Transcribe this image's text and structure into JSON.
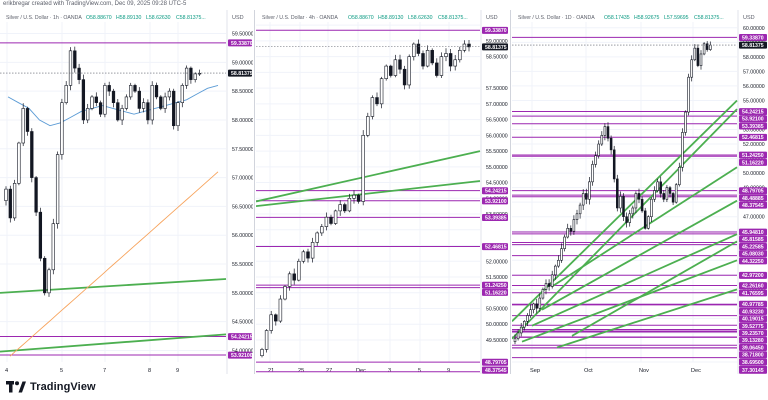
{
  "credit": "erikbregar created with TradingView.com, Dec 09, 2025 09:28 UTC-5",
  "brand": "TradingView",
  "colors": {
    "purple": "#9c27b0",
    "green": "#4caf50",
    "up": "#ffffff",
    "down": "#131722",
    "grid": "#f0f3fa",
    "ma_blue": "#5b9bd5",
    "ma_orange": "#f7a35c"
  },
  "panels": [
    {
      "id": "p1",
      "title": "Silver / U.S. Dollar · 1h · OANDA",
      "ohlc": {
        "o": "O58.88670",
        "h": "H58.89130",
        "l": "L58.62630",
        "c": "C58.81375..."
      },
      "axis_unit": "USD",
      "y_ticks": [
        "59.50000",
        "59.00000",
        "58.50000",
        "58.00000",
        "57.50000",
        "57.00000",
        "56.50000",
        "56.00000",
        "55.50000",
        "55.00000",
        "54.50000",
        "54.00000"
      ],
      "x_ticks": [
        "4",
        "5",
        "7",
        "8",
        "9"
      ],
      "price_labels": [
        {
          "text": "59.33870",
          "type": "purple"
        },
        {
          "text": "58.81375",
          "type": "current"
        },
        {
          "text": "54.24215",
          "type": "purple"
        },
        {
          "text": "53.92100",
          "type": "purple"
        }
      ]
    },
    {
      "id": "p2",
      "title": "Silver / U.S. Dollar · 4h · OANDA",
      "ohlc": {
        "o": "O58.88670",
        "h": "H58.89130",
        "l": "L58.62630",
        "c": "C58.81375..."
      },
      "axis_unit": "USD",
      "y_ticks": [
        "59.00000",
        "58.50000",
        "57.50000",
        "57.00000",
        "56.50000",
        "56.00000",
        "55.50000",
        "55.00000",
        "54.50000",
        "54.00000",
        "53.50000",
        "52.50000",
        "52.00000",
        "51.50000",
        "51.00000",
        "50.50000",
        "50.00000",
        "49.50000"
      ],
      "x_ticks": [
        "21",
        "25",
        "27",
        "Dec",
        "3",
        "5",
        "9"
      ],
      "price_labels": [
        {
          "text": "59.33870",
          "type": "purple"
        },
        {
          "text": "58.81375",
          "type": "current"
        },
        {
          "text": "54.24215",
          "type": "purple"
        },
        {
          "text": "53.92100",
          "type": "purple"
        },
        {
          "text": "53.39385",
          "type": "purple"
        },
        {
          "text": "52.46815",
          "type": "purple"
        },
        {
          "text": "51.24250",
          "type": "purple"
        },
        {
          "text": "51.16220",
          "type": "purple"
        },
        {
          "text": "48.79705",
          "type": "purple"
        },
        {
          "text": "48.48885",
          "type": "purple"
        },
        {
          "text": "48.37545",
          "type": "purple"
        }
      ]
    },
    {
      "id": "p3",
      "title": "Silver / U.S. Dollar · 1D · OANDA",
      "ohlc": {
        "o": "O58.17435",
        "h": "H58.92675",
        "l": "L57.59695",
        "c": "C58.81375..."
      },
      "axis_unit": "USD",
      "y_ticks": [
        "60.00000",
        "59.00000",
        "58.00000",
        "57.00000",
        "56.00000",
        "55.00000",
        "54.00000",
        "53.00000",
        "52.00000",
        "51.00000",
        "50.00000",
        "49.00000",
        "48.00000",
        "47.00000",
        "46.00000",
        "45.00000",
        "44.00000",
        "43.00000",
        "42.00000",
        "41.00000",
        "40.00000",
        "39.00000",
        "38.00000",
        "37.00000",
        "36.00000",
        "35.00000"
      ],
      "x_ticks": [
        "Sep",
        "Oct",
        "Nov",
        "Dec"
      ],
      "price_labels": [
        {
          "text": "59.33870",
          "type": "purple"
        },
        {
          "text": "58.81375",
          "type": "current"
        },
        {
          "text": "54.24215",
          "type": "purple"
        },
        {
          "text": "53.92100",
          "type": "purple"
        },
        {
          "text": "53.39385",
          "type": "purple"
        },
        {
          "text": "52.46815",
          "type": "purple"
        },
        {
          "text": "51.24250",
          "type": "purple"
        },
        {
          "text": "51.16220",
          "type": "purple"
        },
        {
          "text": "48.79705",
          "type": "purple"
        },
        {
          "text": "48.48885",
          "type": "purple"
        },
        {
          "text": "48.37545",
          "type": "purple"
        },
        {
          "text": "45.94810",
          "type": "purple"
        },
        {
          "text": "45.81585",
          "type": "purple"
        },
        {
          "text": "45.22585",
          "type": "purple"
        },
        {
          "text": "45.08030",
          "type": "purple"
        },
        {
          "text": "44.32250",
          "type": "purple"
        },
        {
          "text": "42.97200",
          "type": "purple"
        },
        {
          "text": "42.26160",
          "type": "purple"
        },
        {
          "text": "41.76595",
          "type": "purple"
        },
        {
          "text": "40.97785",
          "type": "purple"
        },
        {
          "text": "40.93230",
          "type": "purple"
        },
        {
          "text": "40.19015",
          "type": "purple"
        },
        {
          "text": "39.52775",
          "type": "purple"
        },
        {
          "text": "39.23570",
          "type": "purple"
        },
        {
          "text": "39.13280",
          "type": "purple"
        },
        {
          "text": "39.06450",
          "type": "purple"
        },
        {
          "text": "38.71800",
          "type": "purple"
        },
        {
          "text": "38.69500",
          "type": "purple"
        },
        {
          "text": "38.15550",
          "type": "purple"
        },
        {
          "text": "37.97445",
          "type": "purple"
        },
        {
          "text": "37.97335",
          "type": "purple"
        },
        {
          "text": "37.30145",
          "type": "purple"
        }
      ]
    }
  ]
}
